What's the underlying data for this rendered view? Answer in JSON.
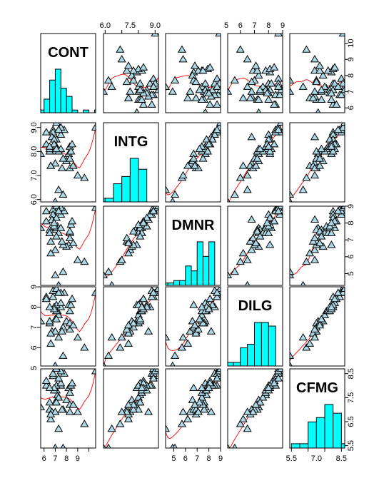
{
  "chart_data": {
    "type": "scatter",
    "variables": [
      "CONT",
      "INTG",
      "DMNR",
      "DILG",
      "CFMG"
    ],
    "axis_ranges": {
      "CONT": [
        5.7,
        10.6
      ],
      "INTG": [
        5.9,
        9.2
      ],
      "DMNR": [
        4.3,
        9.0
      ],
      "DILG": [
        5.1,
        9.0
      ],
      "CFMG": [
        5.4,
        8.7
      ]
    },
    "ticks": {
      "CONT": [
        6,
        7,
        8,
        9,
        10
      ],
      "INTG": [
        6.0,
        7.0,
        8.0,
        9.0
      ],
      "DMNR": [
        5,
        6,
        7,
        8,
        9
      ],
      "DILG": [
        5,
        6,
        7,
        8,
        9
      ],
      "CFMG": [
        5.5,
        6.5,
        7.5,
        8.5
      ]
    },
    "tick_labels": {
      "CONT_bottom": [
        "6",
        "7",
        "8",
        "9"
      ],
      "INTG_top": [
        "6.0",
        "7.5",
        "9.0"
      ],
      "INTG_left": [
        "6.0",
        "7.0",
        "8.0",
        "9.0"
      ],
      "DMNR_bottom": [
        "5",
        "6",
        "7",
        "8",
        "9"
      ],
      "DMNR_right": [
        "5",
        "6",
        "7",
        "8",
        "9"
      ],
      "DILG_top": [
        "5",
        "6",
        "7",
        "8",
        "9"
      ],
      "DILG_left": [
        "5",
        "6",
        "7",
        "8",
        "9"
      ],
      "CFMG_bottom": [
        "5.5",
        "7.0",
        "8.5"
      ],
      "CFMG_right": [
        "5.5",
        "6.5",
        "7.5",
        "8.5"
      ],
      "CONT_right": [
        "6",
        "7",
        "8",
        "9",
        "10"
      ]
    },
    "tick_label_values": {
      "CONT_bottom": [
        6,
        7,
        8,
        9
      ],
      "INTG_top": [
        6.0,
        7.5,
        9.0
      ],
      "INTG_left": [
        6.0,
        7.0,
        8.0,
        9.0
      ],
      "DMNR_bottom": [
        5,
        6,
        7,
        8,
        9
      ],
      "DMNR_right": [
        5,
        6,
        7,
        8,
        9
      ],
      "DILG_top": [
        5,
        6,
        7,
        8,
        9
      ],
      "DILG_left": [
        5,
        6,
        7,
        8,
        9
      ],
      "CFMG_bottom": [
        5.5,
        7.0,
        8.5
      ],
      "CFMG_right": [
        5.5,
        6.5,
        7.5,
        8.5
      ],
      "CONT_right": [
        6,
        7,
        8,
        9,
        10
      ]
    },
    "observations": {
      "CONT": [
        5.7,
        6.8,
        7.2,
        6.8,
        7.3,
        6.2,
        10.6,
        7.0,
        7.3,
        8.2,
        7.0,
        6.5,
        6.7,
        7.0,
        6.5,
        7.3,
        8.0,
        7.7,
        8.3,
        9.6,
        7.1,
        7.6,
        6.6,
        6.2,
        7.5,
        7.8,
        7.1,
        7.5,
        7.5,
        7.1,
        6.6,
        8.4,
        6.9,
        7.3,
        7.7,
        8.5,
        6.9,
        6.5,
        8.3,
        8.3,
        9.0,
        7.1,
        8.6
      ],
      "INTG": [
        7.9,
        8.9,
        8.1,
        8.8,
        6.4,
        8.8,
        9.0,
        5.9,
        8.9,
        7.9,
        8.0,
        8.0,
        8.6,
        7.5,
        8.1,
        8.0,
        7.6,
        7.7,
        8.2,
        6.9,
        8.2,
        7.3,
        7.4,
        8.3,
        8.7,
        8.9,
        8.5,
        9.0,
        8.1,
        9.2,
        7.4,
        8.0,
        8.5,
        8.9,
        6.2,
        8.3,
        8.3,
        8.2,
        7.3,
        7.7,
        7.0,
        8.1,
        7.4
      ],
      "DMNR": [
        7.7,
        8.8,
        7.8,
        8.5,
        4.3,
        8.7,
        8.9,
        4.9,
        8.9,
        6.7,
        7.6,
        7.6,
        8.2,
        6.4,
        7.4,
        7.4,
        6.6,
        6.7,
        7.4,
        5.7,
        7.7,
        6.9,
        6.2,
        8.1,
        8.5,
        8.7,
        8.3,
        8.9,
        7.7,
        9.0,
        6.9,
        7.9,
        7.8,
        8.7,
        5.1,
        8.1,
        8.0,
        7.4,
        7.1,
        7.5,
        5.8,
        7.2,
        6.8
      ],
      "DILG": [
        7.3,
        8.5,
        7.8,
        8.8,
        6.5,
        8.5,
        8.7,
        5.1,
        8.7,
        8.1,
        7.4,
        7.2,
        6.8,
        6.8,
        7.3,
        7.6,
        7.3,
        7.0,
        7.8,
        6.0,
        7.8,
        6.8,
        6.2,
        8.4,
        8.0,
        8.7,
        8.1,
        8.7,
        8.2,
        8.9,
        6.7,
        8.1,
        8.0,
        8.7,
        5.6,
        8.4,
        7.9,
        8.0,
        6.9,
        7.2,
        6.5,
        7.4,
        7.1
      ],
      "CFMG": [
        7.1,
        8.4,
        7.6,
        8.5,
        6.2,
        8.0,
        8.6,
        5.4,
        8.7,
        7.9,
        7.3,
        7.0,
        6.9,
        6.9,
        7.3,
        7.5,
        7.4,
        7.0,
        7.7,
        6.4,
        7.8,
        7.0,
        6.6,
        8.2,
        8.0,
        8.5,
        8.0,
        8.6,
        8.1,
        8.7,
        6.8,
        8.0,
        7.8,
        8.3,
        5.4,
        8.1,
        7.9,
        7.9,
        6.9,
        7.2,
        6.9,
        7.3,
        7.2
      ]
    },
    "histograms": {
      "CONT": {
        "breaks": [
          5.5,
          6,
          6.5,
          7,
          7.5,
          8,
          8.5,
          9,
          9.5,
          10,
          10.5,
          11
        ],
        "density": [
          0.1,
          0.5,
          1.2,
          1.6,
          0.9,
          0.6,
          0.1,
          0.0,
          0.1,
          0.0,
          0.1
        ]
      },
      "INTG": {
        "breaks": [
          5.5,
          6,
          6.5,
          7,
          7.5,
          8,
          8.5,
          9,
          9.5
        ],
        "density": [
          0.1,
          0.1,
          0.5,
          0.7,
          1.2,
          0.9,
          0.0,
          0.0
        ]
      },
      "DMNR": {
        "breaks": [
          4,
          4.5,
          5,
          5.5,
          6,
          6.5,
          7,
          7.5,
          8,
          8.5,
          9
        ],
        "density": [
          0.05,
          0.05,
          0.1,
          0.1,
          0.4,
          0.3,
          0.9,
          0.6,
          0.9,
          0.0
        ]
      },
      "DILG": {
        "breaks": [
          5,
          5.5,
          6,
          6.5,
          7,
          7.5,
          8,
          8.5,
          9
        ],
        "density": [
          0.1,
          0.1,
          0.5,
          0.6,
          1.2,
          1.2,
          1.1,
          0.0
        ]
      },
      "CFMG": {
        "breaks": [
          5.5,
          6,
          6.5,
          7,
          7.5,
          8,
          8.5,
          9
        ],
        "density": [
          0.1,
          0.1,
          0.6,
          0.7,
          1.0,
          0.8,
          0.1
        ]
      }
    },
    "grid": false,
    "legend": "none",
    "colors": {
      "points": "#add8e6",
      "histogram": "#00ffff",
      "smooth": "#ff0000",
      "frame": "#000000"
    }
  }
}
